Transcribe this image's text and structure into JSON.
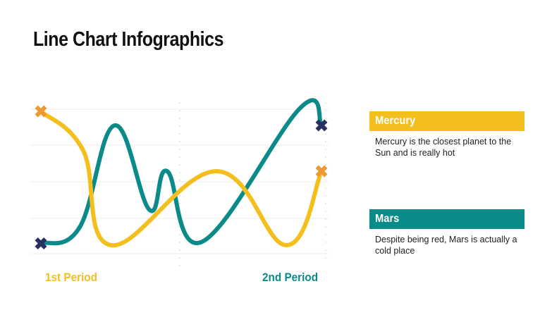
{
  "slide": {
    "title": "Line Chart Infographics"
  },
  "colors": {
    "mercury": "#f4bf1d",
    "mars": "#0b8a8a",
    "marker_navy": "#273060",
    "marker_orange": "#ee9a33",
    "grid": "#eeeeee"
  },
  "periods": {
    "first": "1st Period",
    "second": "2nd Period"
  },
  "legend": [
    {
      "name": "Mercury",
      "description": "Mercury is the closest planet to the Sun and is really hot",
      "color": "#f4bf1d"
    },
    {
      "name": "Mars",
      "description": "Despite being red, Mars is actually a cold place",
      "color": "#0b8a8a"
    }
  ],
  "chart_data": {
    "type": "line",
    "grid": true,
    "ylim": [
      0,
      4
    ],
    "x_labels": [
      "1st Period",
      "2nd Period"
    ],
    "series": [
      {
        "name": "Mercury",
        "color": "#f4bf1d",
        "points": [
          [
            0,
            3.9
          ],
          [
            1.2,
            2.8
          ],
          [
            2.0,
            0.1
          ],
          [
            5.0,
            2.2
          ],
          [
            7.0,
            0.1
          ],
          [
            8.0,
            2.2
          ]
        ],
        "start_marker": "orange",
        "end_marker": "orange"
      },
      {
        "name": "Mars",
        "color": "#0b8a8a",
        "points": [
          [
            0,
            0.15
          ],
          [
            1.1,
            0.6
          ],
          [
            2.1,
            3.5
          ],
          [
            3.1,
            1.1
          ],
          [
            3.6,
            2.2
          ],
          [
            4.6,
            0.2
          ],
          [
            7.4,
            4.0
          ],
          [
            8.0,
            3.5
          ]
        ],
        "start_marker": "navy",
        "end_marker": "navy"
      }
    ]
  }
}
